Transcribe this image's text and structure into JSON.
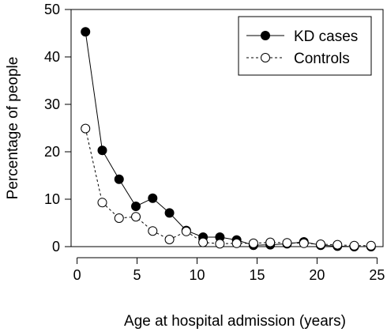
{
  "chart_data": {
    "type": "line",
    "title": "",
    "xlabel": "Age at hospital admission (years)",
    "ylabel": "Percentage of people",
    "xlim": [
      -0.5,
      25.5
    ],
    "ylim": [
      0,
      50
    ],
    "xticks": [
      0,
      5,
      10,
      15,
      20,
      25
    ],
    "yticks": [
      0,
      10,
      20,
      30,
      40,
      50
    ],
    "grid": false,
    "legend_position": "top-right",
    "series": [
      {
        "name": "KD cases",
        "marker": "filled-circle",
        "line": "solid",
        "color": "#000000",
        "points": [
          {
            "x": 0.7,
            "y": 45.3
          },
          {
            "x": 2.1,
            "y": 20.3
          },
          {
            "x": 3.5,
            "y": 14.2
          },
          {
            "x": 4.9,
            "y": 8.5
          },
          {
            "x": 6.3,
            "y": 10.2
          },
          {
            "x": 7.7,
            "y": 7.1
          },
          {
            "x": 9.1,
            "y": 3.4
          },
          {
            "x": 10.5,
            "y": 2.0
          },
          {
            "x": 11.9,
            "y": 2.0
          },
          {
            "x": 13.3,
            "y": 1.4
          },
          {
            "x": 14.7,
            "y": 0.3
          },
          {
            "x": 16.1,
            "y": 0.4
          },
          {
            "x": 17.5,
            "y": 0.6
          },
          {
            "x": 18.9,
            "y": 1.0
          },
          {
            "x": 20.3,
            "y": 0.3
          },
          {
            "x": 21.7,
            "y": 0.1
          },
          {
            "x": 23.1,
            "y": 0.0
          },
          {
            "x": 24.5,
            "y": 0.0
          }
        ]
      },
      {
        "name": "Controls",
        "marker": "open-circle",
        "line": "dashed",
        "color": "#000000",
        "points": [
          {
            "x": 0.7,
            "y": 24.9
          },
          {
            "x": 2.1,
            "y": 9.3
          },
          {
            "x": 3.5,
            "y": 6.0
          },
          {
            "x": 4.9,
            "y": 6.3
          },
          {
            "x": 6.3,
            "y": 3.3
          },
          {
            "x": 7.7,
            "y": 1.5
          },
          {
            "x": 9.1,
            "y": 3.2
          },
          {
            "x": 10.5,
            "y": 0.9
          },
          {
            "x": 11.9,
            "y": 0.6
          },
          {
            "x": 13.3,
            "y": 0.7
          },
          {
            "x": 14.7,
            "y": 0.7
          },
          {
            "x": 16.1,
            "y": 0.9
          },
          {
            "x": 17.5,
            "y": 0.8
          },
          {
            "x": 18.9,
            "y": 0.7
          },
          {
            "x": 20.3,
            "y": 0.5
          },
          {
            "x": 21.7,
            "y": 0.4
          },
          {
            "x": 23.1,
            "y": 0.2
          },
          {
            "x": 24.5,
            "y": 0.2
          }
        ]
      }
    ]
  }
}
